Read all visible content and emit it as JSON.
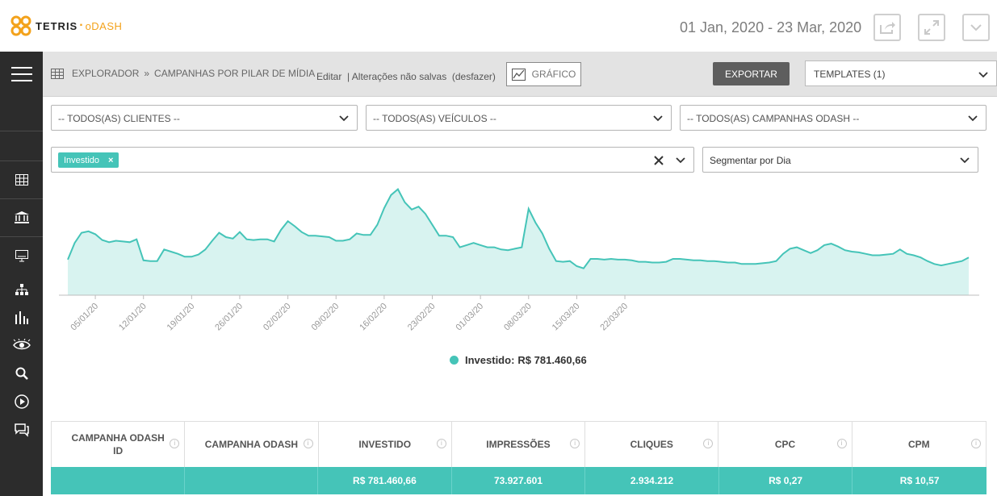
{
  "brand": {
    "name": "TETRIS",
    "dot": "·",
    "sub": "oDASH",
    "accent": "#f3a21b"
  },
  "header": {
    "date_range": "01 Jan, 2020 - 23 Mar, 2020",
    "buttons": [
      "share-icon",
      "expand-icon",
      "chevron-down-icon"
    ]
  },
  "sidebar": {
    "items": [
      "menu-icon",
      "grid-icon",
      "bank-icon",
      "monitor-icon",
      "sitemap-icon",
      "bar-chart-icon",
      "eye-icon",
      "search-icon",
      "play-icon",
      "chat-icon"
    ]
  },
  "toolbar": {
    "crumb_root": "EXPLORADOR",
    "crumb_sep": "»",
    "crumb_page": "CAMPANHAS POR PILAR DE MÍDIA",
    "edit_info": "Editar  | Alterações não salvas  (desfazer)",
    "grafico_label": "GRÁFICO",
    "export_label": "EXPORTAR",
    "templates_label": "TEMPLATES (1)"
  },
  "filters": {
    "clients": "-- TODOS(AS) CLIENTES --",
    "vehicles": "-- TODOS(AS) VEÍCULOS --",
    "campaigns": "-- TODOS(AS) CAMPANHAS ODASH --",
    "metric_tag": "Investido",
    "segment": "Segmentar por Dia"
  },
  "chart_data": {
    "type": "area",
    "series": [
      {
        "name": "Investido",
        "color": "#45c4b8",
        "values": [
          49,
          72,
          86,
          88,
          84,
          76,
          73,
          75,
          74,
          73,
          77,
          48,
          47,
          47,
          63,
          60,
          57,
          53,
          53,
          56,
          63,
          75,
          86,
          80,
          78,
          87,
          77,
          76,
          77,
          77,
          74,
          90,
          102,
          95,
          87,
          82,
          82,
          81,
          80,
          75,
          75,
          77,
          85,
          83,
          83,
          97,
          120,
          138,
          146,
          128,
          118,
          122,
          112,
          97,
          82,
          82,
          80,
          66,
          69,
          72,
          69,
          66,
          66,
          63,
          62,
          64,
          66,
          119,
          100,
          85,
          64,
          47,
          46,
          47,
          40,
          37,
          50,
          50,
          49,
          50,
          49,
          49,
          48,
          46,
          46,
          45,
          45,
          46,
          50,
          50,
          49,
          48,
          48,
          47,
          47,
          46,
          45,
          45,
          43,
          43,
          43,
          44,
          45,
          47,
          57,
          64,
          66,
          62,
          58,
          62,
          69,
          71,
          67,
          62,
          60,
          59,
          57,
          55,
          55,
          56,
          57,
          63,
          57,
          55,
          52,
          47,
          43,
          41,
          43,
          45,
          47,
          52
        ]
      }
    ],
    "x_ticks": [
      "05/01/20",
      "12/01/20",
      "19/01/20",
      "26/01/20",
      "02/02/20",
      "09/02/20",
      "16/02/20",
      "23/02/20",
      "01/03/20",
      "08/03/20",
      "15/03/20",
      "22/03/20"
    ],
    "legend_label": "Investido:",
    "legend_value": "R$ 781.460,66",
    "grid": false,
    "legend_position": "bottom-center"
  },
  "table": {
    "headers": [
      "CAMPANHA ODASH ID",
      "CAMPANHA ODASH",
      "INVESTIDO",
      "IMPRESSÕES",
      "CLIQUES",
      "CPC",
      "CPM"
    ],
    "totals": [
      "",
      "",
      "R$ 781.460,66",
      "73.927.601",
      "2.934.212",
      "R$ 0,27",
      "R$ 10,57"
    ]
  },
  "colors": {
    "accent": "#45c4b8",
    "sidebar": "#2c2c2c",
    "toolbar": "#e3e3e3"
  }
}
